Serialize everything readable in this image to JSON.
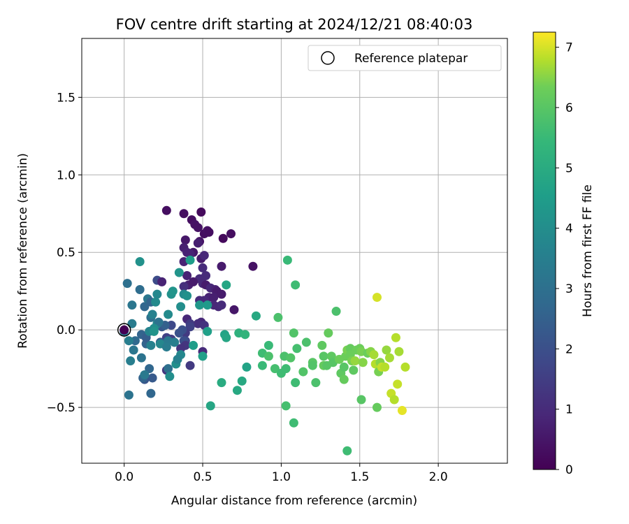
{
  "chart_data": {
    "type": "scatter",
    "title": "FOV centre drift starting at 2024/12/21 08:40:03",
    "xlabel": "Angular distance from reference (arcmin)",
    "ylabel": "Rotation from reference (arcmin)",
    "xlim": [
      -0.27,
      2.44
    ],
    "ylim": [
      -0.86,
      1.88
    ],
    "xticks": [
      0.0,
      0.5,
      1.0,
      1.5,
      2.0
    ],
    "xtick_labels": [
      "0.0",
      "0.5",
      "1.0",
      "1.5",
      "2.0"
    ],
    "yticks": [
      -0.5,
      0.0,
      0.5,
      1.0,
      1.5
    ],
    "ytick_labels": [
      "−0.5",
      "0.0",
      "0.5",
      "1.0",
      "1.5"
    ],
    "grid": true,
    "legend": {
      "position": "top-right",
      "entries": [
        "Reference platepar"
      ]
    },
    "reference_point": {
      "x": 0.0,
      "y": 0.0,
      "t": 0.0
    },
    "colorbar": {
      "label": "Hours from first FF file",
      "colormap": "viridis",
      "range": [
        0,
        7.25
      ],
      "ticks": [
        0,
        1,
        2,
        3,
        4,
        5,
        6,
        7
      ],
      "tick_labels": [
        "0",
        "1",
        "2",
        "3",
        "4",
        "5",
        "6",
        "7"
      ]
    },
    "points": [
      [
        0.27,
        0.77,
        0.3
      ],
      [
        0.38,
        0.75,
        0.3
      ],
      [
        0.49,
        0.76,
        0.2
      ],
      [
        0.43,
        0.71,
        0.3
      ],
      [
        0.45,
        0.68,
        0.4
      ],
      [
        0.47,
        0.66,
        0.4
      ],
      [
        0.51,
        0.62,
        0.3
      ],
      [
        0.53,
        0.64,
        0.4
      ],
      [
        0.54,
        0.63,
        0.3
      ],
      [
        0.68,
        0.62,
        0.3
      ],
      [
        0.63,
        0.59,
        0.2
      ],
      [
        0.39,
        0.58,
        0.5
      ],
      [
        0.48,
        0.57,
        0.4
      ],
      [
        0.47,
        0.56,
        0.7
      ],
      [
        0.38,
        0.53,
        0.7
      ],
      [
        0.4,
        0.5,
        0.8
      ],
      [
        0.44,
        0.5,
        0.5
      ],
      [
        0.42,
        0.49,
        0.8
      ],
      [
        0.49,
        0.46,
        0.6
      ],
      [
        0.51,
        0.48,
        0.9
      ],
      [
        0.38,
        0.44,
        0.8
      ],
      [
        0.5,
        0.4,
        1.0
      ],
      [
        0.62,
        0.41,
        0.6
      ],
      [
        0.82,
        0.41,
        0.4
      ],
      [
        0.4,
        0.35,
        0.8
      ],
      [
        0.52,
        0.35,
        1.0
      ],
      [
        0.48,
        0.33,
        1.0
      ],
      [
        0.5,
        0.3,
        0.9
      ],
      [
        0.41,
        0.29,
        0.7
      ],
      [
        0.44,
        0.31,
        0.6
      ],
      [
        0.52,
        0.29,
        0.6
      ],
      [
        0.38,
        0.28,
        1.1
      ],
      [
        0.55,
        0.27,
        0.9
      ],
      [
        0.58,
        0.26,
        0.8
      ],
      [
        0.59,
        0.25,
        0.6
      ],
      [
        0.21,
        0.32,
        1.9
      ],
      [
        0.24,
        0.31,
        0.8
      ],
      [
        0.54,
        0.21,
        0.8
      ],
      [
        0.57,
        0.21,
        0.7
      ],
      [
        0.62,
        0.23,
        0.6
      ],
      [
        0.48,
        0.19,
        1.0
      ],
      [
        0.51,
        0.19,
        0.9
      ],
      [
        0.57,
        0.16,
        0.9
      ],
      [
        0.6,
        0.15,
        0.9
      ],
      [
        0.62,
        0.16,
        1.0
      ],
      [
        0.7,
        0.13,
        0.5
      ],
      [
        0.4,
        0.07,
        0.9
      ],
      [
        0.49,
        0.05,
        0.9
      ],
      [
        0.47,
        0.04,
        1.1
      ],
      [
        0.51,
        0.03,
        1.2
      ],
      [
        0.42,
        0.04,
        1.4
      ],
      [
        0.42,
        0.02,
        1.6
      ],
      [
        0.3,
        0.03,
        1.8
      ],
      [
        0.39,
        -0.02,
        1.4
      ],
      [
        0.24,
        0.02,
        2.2
      ],
      [
        0.26,
        0.03,
        2.5
      ],
      [
        0.37,
        0.0,
        2.0
      ],
      [
        0.35,
        -0.02,
        2.1
      ],
      [
        0.27,
        -0.05,
        1.6
      ],
      [
        0.3,
        -0.06,
        1.5
      ],
      [
        0.32,
        -0.08,
        1.3
      ],
      [
        0.39,
        -0.07,
        1.7
      ],
      [
        0.38,
        -0.07,
        2.0
      ],
      [
        0.23,
        -0.08,
        2.3
      ],
      [
        0.26,
        -0.09,
        2.4
      ],
      [
        0.39,
        -0.1,
        1.3
      ],
      [
        0.36,
        -0.12,
        1.2
      ],
      [
        0.14,
        -0.09,
        2.6
      ],
      [
        0.5,
        -0.14,
        1.0
      ],
      [
        0.42,
        -0.23,
        1.4
      ],
      [
        0.27,
        -0.26,
        1.3
      ],
      [
        0.28,
        -0.25,
        3.0
      ],
      [
        0.16,
        -0.25,
        2.7
      ],
      [
        0.18,
        -0.31,
        2.3
      ],
      [
        0.13,
        -0.32,
        2.2
      ],
      [
        0.12,
        -0.31,
        2.6
      ],
      [
        0.17,
        -0.41,
        2.7
      ],
      [
        0.03,
        -0.42,
        3.1
      ],
      [
        0.11,
        -0.03,
        2.6
      ],
      [
        0.14,
        -0.05,
        2.4
      ],
      [
        0.07,
        -0.07,
        2.8
      ],
      [
        0.06,
        -0.13,
        3.2
      ],
      [
        0.11,
        -0.18,
        3.1
      ],
      [
        0.13,
        -0.29,
        3.3
      ],
      [
        0.04,
        -0.2,
        3.5
      ],
      [
        0.03,
        -0.07,
        3.5
      ],
      [
        0.0,
        -0.01,
        3.3
      ],
      [
        0.05,
        0.04,
        3.4
      ],
      [
        0.05,
        0.16,
        3.2
      ],
      [
        0.02,
        0.3,
        3.0
      ],
      [
        0.1,
        0.26,
        2.9
      ],
      [
        0.13,
        0.15,
        2.7
      ],
      [
        0.15,
        0.2,
        3.2
      ],
      [
        0.17,
        0.18,
        2.6
      ],
      [
        0.17,
        0.08,
        3.0
      ],
      [
        0.18,
        0.1,
        3.6
      ],
      [
        0.21,
        0.04,
        3.8
      ],
      [
        0.22,
        0.05,
        3.1
      ],
      [
        0.19,
        0.01,
        4.0
      ],
      [
        0.16,
        -0.01,
        3.7
      ],
      [
        0.17,
        -0.1,
        3.6
      ],
      [
        0.19,
        -0.01,
        4.2
      ],
      [
        0.23,
        -0.09,
        3.8
      ],
      [
        0.28,
        -0.07,
        3.3
      ],
      [
        0.32,
        -0.08,
        3.5
      ],
      [
        0.27,
        -0.11,
        3.4
      ],
      [
        0.29,
        -0.3,
        4.0
      ],
      [
        0.33,
        -0.22,
        4.0
      ],
      [
        0.36,
        -0.16,
        3.8
      ],
      [
        0.34,
        -0.19,
        3.6
      ],
      [
        0.2,
        0.18,
        3.9
      ],
      [
        0.21,
        0.23,
        3.8
      ],
      [
        0.28,
        0.1,
        3.9
      ],
      [
        0.3,
        0.23,
        4.1
      ],
      [
        0.31,
        0.25,
        4.2
      ],
      [
        0.35,
        0.37,
        4.2
      ],
      [
        0.36,
        0.15,
        4.0
      ],
      [
        0.38,
        0.23,
        3.9
      ],
      [
        0.4,
        0.22,
        4.1
      ],
      [
        0.42,
        0.45,
        4.5
      ],
      [
        0.48,
        0.16,
        4.3
      ],
      [
        0.53,
        0.16,
        4.4
      ],
      [
        0.53,
        -0.01,
        4.6
      ],
      [
        0.44,
        -0.1,
        4.5
      ],
      [
        0.5,
        -0.17,
        4.6
      ],
      [
        0.55,
        -0.49,
        4.8
      ],
      [
        0.64,
        -0.03,
        4.7
      ],
      [
        0.65,
        -0.05,
        4.8
      ],
      [
        0.65,
        0.29,
        4.8
      ],
      [
        0.72,
        -0.39,
        4.9
      ],
      [
        0.73,
        -0.02,
        5.2
      ],
      [
        0.75,
        -0.33,
        4.9
      ],
      [
        0.77,
        -0.03,
        5.3
      ],
      [
        0.78,
        -0.24,
        4.7
      ],
      [
        0.84,
        0.09,
        4.9
      ],
      [
        0.62,
        -0.34,
        5.0
      ],
      [
        0.1,
        0.44,
        4.1
      ],
      [
        0.88,
        -0.23,
        5.5
      ],
      [
        0.88,
        -0.15,
        5.6
      ],
      [
        0.92,
        -0.1,
        5.5
      ],
      [
        0.92,
        -0.17,
        5.8
      ],
      [
        0.96,
        -0.25,
        5.7
      ],
      [
        0.98,
        0.08,
        5.8
      ],
      [
        1.0,
        -0.28,
        5.6
      ],
      [
        1.02,
        -0.17,
        5.8
      ],
      [
        1.03,
        -0.25,
        5.6
      ],
      [
        1.03,
        -0.49,
        5.7
      ],
      [
        1.06,
        -0.18,
        5.9
      ],
      [
        1.04,
        0.45,
        5.5
      ],
      [
        1.08,
        -0.02,
        5.9
      ],
      [
        1.09,
        0.29,
        5.6
      ],
      [
        1.09,
        -0.34,
        5.6
      ],
      [
        1.1,
        -0.12,
        5.7
      ],
      [
        1.08,
        -0.6,
        5.6
      ],
      [
        1.14,
        -0.27,
        5.9
      ],
      [
        1.16,
        -0.08,
        5.8
      ],
      [
        1.2,
        -0.21,
        6.0
      ],
      [
        1.22,
        -0.34,
        5.8
      ],
      [
        1.2,
        -0.23,
        5.9
      ],
      [
        1.26,
        -0.1,
        6.1
      ],
      [
        1.27,
        -0.17,
        6.0
      ],
      [
        1.27,
        -0.23,
        6.2
      ],
      [
        1.29,
        -0.23,
        6.0
      ],
      [
        1.3,
        -0.02,
        6.2
      ],
      [
        1.32,
        -0.17,
        6.1
      ],
      [
        1.33,
        -0.21,
        6.0
      ],
      [
        1.35,
        0.12,
        5.8
      ],
      [
        1.37,
        -0.19,
        6.3
      ],
      [
        1.38,
        -0.28,
        6.1
      ],
      [
        1.4,
        -0.32,
        6.2
      ],
      [
        1.4,
        -0.24,
        6.0
      ],
      [
        1.41,
        -0.17,
        6.3
      ],
      [
        1.42,
        -0.13,
        6.4
      ],
      [
        1.42,
        -0.78,
        5.6
      ],
      [
        1.44,
        -0.12,
        6.2
      ],
      [
        1.44,
        -0.16,
        6.3
      ],
      [
        1.45,
        -0.2,
        6.4
      ],
      [
        1.46,
        -0.26,
        6.1
      ],
      [
        1.47,
        -0.2,
        6.6
      ],
      [
        1.48,
        -0.13,
        6.3
      ],
      [
        1.5,
        -0.12,
        6.3
      ],
      [
        1.51,
        -0.14,
        6.4
      ],
      [
        1.51,
        -0.45,
        6.0
      ],
      [
        1.52,
        -0.21,
        6.5
      ],
      [
        1.55,
        -0.15,
        6.3
      ],
      [
        1.57,
        -0.14,
        6.5
      ],
      [
        1.59,
        -0.16,
        6.7
      ],
      [
        1.6,
        -0.22,
        6.8
      ],
      [
        1.61,
        0.21,
        7.0
      ],
      [
        1.61,
        -0.5,
        6.2
      ],
      [
        1.62,
        -0.27,
        6.4
      ],
      [
        1.63,
        -0.21,
        6.5
      ],
      [
        1.64,
        -0.24,
        6.9
      ],
      [
        1.66,
        -0.24,
        6.8
      ],
      [
        1.67,
        -0.13,
        6.6
      ],
      [
        1.69,
        -0.18,
        6.7
      ],
      [
        1.7,
        -0.41,
        6.9
      ],
      [
        1.72,
        -0.45,
        6.8
      ],
      [
        1.73,
        -0.05,
        6.8
      ],
      [
        1.74,
        -0.35,
        6.9
      ],
      [
        1.75,
        -0.14,
        6.7
      ],
      [
        1.77,
        -0.52,
        7.1
      ],
      [
        1.79,
        -0.24,
        6.8
      ]
    ]
  }
}
